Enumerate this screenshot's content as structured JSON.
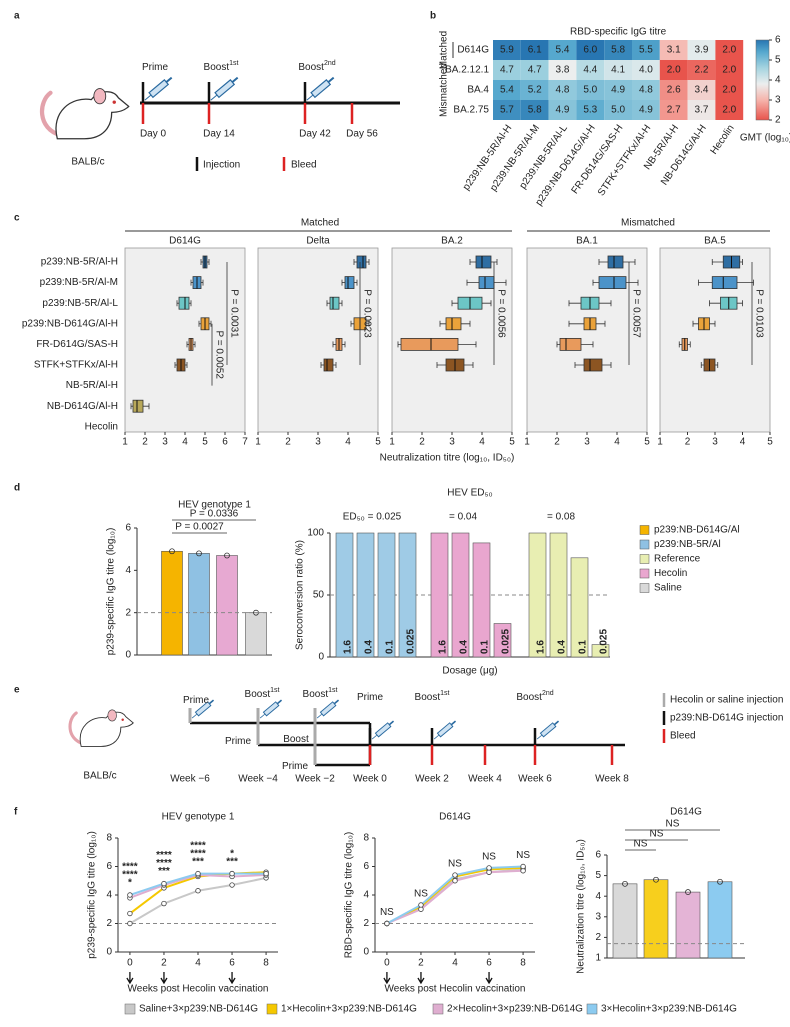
{
  "panel_labels": [
    "a",
    "b",
    "c",
    "d",
    "e",
    "f"
  ],
  "schedule_a": {
    "events": [
      {
        "label": "Prime"
      },
      {
        "label": "Boost",
        "sup": "1st"
      },
      {
        "label": "Boost",
        "sup": "2nd"
      }
    ],
    "days": [
      "Day 0",
      "Day 14",
      "Day 42",
      "Day 56"
    ],
    "strain": "BALB/c",
    "legend": [
      "Injection",
      "Bleed"
    ]
  },
  "panel_c": {
    "groups": [
      "Matched",
      "Mismatched"
    ],
    "categories": [
      "p239:NB-5R/Al-H",
      "p239:NB-5R/Al-M",
      "p239:NB-5R/Al-L",
      "p239:NB-D614G/Al-H",
      "FR-D614G/SAS-H",
      "STFK+STFKx/Al-H",
      "NB-5R/Al-H",
      "NB-D614G/Al-H",
      "Hecolin"
    ],
    "colors": [
      "#2f6ea3",
      "#4b93c9",
      "#6cc6c6",
      "#eaa23a",
      "#e89a5c",
      "#8c5522",
      "#888888",
      "#b8a85a",
      "#888888"
    ],
    "xlabel": "Neutralization titre (log₁₀, ID₅₀)"
  },
  "legend_d": [
    {
      "name": "p239:NB-D614G/Al",
      "color": "#f5b400"
    },
    {
      "name": "p239:NB-5R/Al",
      "color": "#8fc1e3"
    },
    {
      "name": "Reference",
      "color": "#e8eeb2"
    },
    {
      "name": "Hecolin",
      "color": "#e9a6cf"
    },
    {
      "name": "Saline",
      "color": "#d9d9d9"
    }
  ],
  "schedule_e": {
    "steps": [
      {
        "label": "Prime"
      },
      {
        "label": "Boost",
        "sup": "1st"
      },
      {
        "label": "Boost",
        "sup": "1st"
      },
      {
        "label": "Prime"
      },
      {
        "label": "Boost",
        "sup": "1st"
      },
      {
        "label": "Boost",
        "sup": "2nd"
      },
      {
        "label": "Prime"
      },
      {
        "label": "Boost"
      },
      {
        "label": "Prime"
      }
    ],
    "weeks": [
      "Week −6",
      "Week −4",
      "Week −2",
      "Week 0",
      "Week 2",
      "Week 4",
      "Week 6",
      "Week 8"
    ],
    "strain": "BALB/c",
    "legend": [
      "Hecolin or saline injection",
      "p239:NB-D614G injection",
      "Bleed"
    ]
  },
  "chart_data": [
    {
      "type": "heatmap",
      "title": "RBD-specific IgG titre",
      "row_groups": [
        "Matched",
        "Mismatched"
      ],
      "rows": [
        "D614G",
        "BA.2.12.1",
        "BA.4",
        "BA.2.75"
      ],
      "columns": [
        "p239:NB-5R/Al-H",
        "p239:NB-5R/Al-M",
        "p239:NB-5R/Al-L",
        "p239:NB-D614G/Al-H",
        "FR-D614G/SAS-H",
        "STFK+STFKx/Al-H",
        "NB-5R/Al-H",
        "NB-D614G/Al-H",
        "Hecolin"
      ],
      "values": [
        [
          5.9,
          6.1,
          5.4,
          6.0,
          5.8,
          5.5,
          3.1,
          3.9,
          2.0
        ],
        [
          4.7,
          4.7,
          3.8,
          4.4,
          4.1,
          4.0,
          2.0,
          2.2,
          2.0
        ],
        [
          5.4,
          5.2,
          4.8,
          5.0,
          4.9,
          4.8,
          2.6,
          3.4,
          2.0
        ],
        [
          5.7,
          5.8,
          4.9,
          5.3,
          5.0,
          4.9,
          2.7,
          3.7,
          2.0
        ]
      ],
      "value_labels": [
        [
          "5.9",
          "6.1",
          "5.4",
          "6.0",
          "5.8",
          "5.5",
          "3.1",
          "3.9",
          "2.0"
        ],
        [
          "4.7",
          "4.7",
          "3.8",
          "4.4",
          "4.1",
          "4.0",
          "2.0",
          "2.2",
          "2.0"
        ],
        [
          "5.4",
          "5.2",
          "4.8",
          "5.0",
          "4.9",
          "4.8",
          "2.6",
          "3.4",
          "2.0"
        ],
        [
          "5.7",
          "5.8",
          "4.9",
          "5.3",
          "5.0",
          "4.9",
          "2.7",
          "3.7",
          "2.0"
        ]
      ],
      "clim": [
        2,
        6
      ],
      "cticks": [
        2,
        3,
        4,
        5,
        6
      ],
      "colorbar_label": "GMT (log₁₀)"
    },
    {
      "type": "box",
      "title": "D614G",
      "xlim": [
        1,
        7
      ],
      "xticks": [
        1,
        2,
        3,
        4,
        5,
        6,
        7
      ],
      "p_values": [
        "P = 0.0031",
        "P = 0.0052"
      ],
      "boxes": [
        {
          "min": 4.8,
          "q1": 4.9,
          "median": 5.0,
          "q3": 5.1,
          "max": 5.2
        },
        {
          "min": 4.3,
          "q1": 4.4,
          "median": 4.6,
          "q3": 4.8,
          "max": 4.9
        },
        {
          "min": 3.6,
          "q1": 3.7,
          "median": 4.0,
          "q3": 4.2,
          "max": 4.3
        },
        {
          "min": 4.7,
          "q1": 4.8,
          "median": 5.0,
          "q3": 5.2,
          "max": 5.3
        },
        {
          "min": 4.1,
          "q1": 4.2,
          "median": 4.3,
          "q3": 4.4,
          "max": 4.5
        },
        {
          "min": 3.5,
          "q1": 3.6,
          "median": 3.8,
          "q3": 4.0,
          "max": 4.1
        },
        null,
        {
          "min": 1.3,
          "q1": 1.4,
          "median": 1.6,
          "q3": 1.9,
          "max": 2.2
        },
        null
      ]
    },
    {
      "type": "box",
      "title": "Delta",
      "xlim": [
        1,
        5
      ],
      "xticks": [
        1,
        2,
        3,
        4,
        5
      ],
      "p_values": [
        "P = 0.0023"
      ],
      "boxes": [
        {
          "min": 4.2,
          "q1": 4.3,
          "median": 4.5,
          "q3": 4.6,
          "max": 4.7
        },
        {
          "min": 3.8,
          "q1": 3.9,
          "median": 4.0,
          "q3": 4.2,
          "max": 4.3
        },
        {
          "min": 3.3,
          "q1": 3.4,
          "median": 3.5,
          "q3": 3.7,
          "max": 3.8
        },
        {
          "min": 4.1,
          "q1": 4.2,
          "median": 4.4,
          "q3": 4.6,
          "max": 4.7
        },
        {
          "min": 3.5,
          "q1": 3.6,
          "median": 3.7,
          "q3": 3.8,
          "max": 3.9
        },
        {
          "min": 3.1,
          "q1": 3.2,
          "median": 3.3,
          "q3": 3.5,
          "max": 3.6
        },
        null,
        null,
        null
      ]
    },
    {
      "type": "box",
      "title": "BA.2",
      "xlim": [
        1,
        5
      ],
      "xticks": [
        1,
        2,
        3,
        4,
        5
      ],
      "p_values": [
        "P = 0.0056"
      ],
      "boxes": [
        {
          "min": 3.6,
          "q1": 3.8,
          "median": 4.0,
          "q3": 4.3,
          "max": 4.5
        },
        {
          "min": 3.5,
          "q1": 3.9,
          "median": 4.1,
          "q3": 4.4,
          "max": 4.8
        },
        {
          "min": 3.0,
          "q1": 3.2,
          "median": 3.6,
          "q3": 4.0,
          "max": 4.3
        },
        {
          "min": 2.6,
          "q1": 2.8,
          "median": 3.0,
          "q3": 3.3,
          "max": 3.6
        },
        {
          "min": 1.2,
          "q1": 1.3,
          "median": 2.3,
          "q3": 3.2,
          "max": 3.8
        },
        {
          "min": 2.5,
          "q1": 2.8,
          "median": 3.1,
          "q3": 3.4,
          "max": 3.7
        },
        null,
        null,
        null
      ]
    },
    {
      "type": "box",
      "title": "BA.1",
      "xlim": [
        1,
        5
      ],
      "xticks": [
        1,
        2,
        3,
        4,
        5
      ],
      "p_values": [
        "P = 0.0057"
      ],
      "boxes": [
        {
          "min": 3.4,
          "q1": 3.7,
          "median": 3.9,
          "q3": 4.2,
          "max": 4.6
        },
        {
          "min": 3.2,
          "q1": 3.4,
          "median": 3.9,
          "q3": 4.3,
          "max": 4.7
        },
        {
          "min": 2.4,
          "q1": 2.8,
          "median": 3.1,
          "q3": 3.4,
          "max": 3.8
        },
        {
          "min": 2.4,
          "q1": 2.9,
          "median": 3.1,
          "q3": 3.3,
          "max": 3.6
        },
        {
          "min": 2.0,
          "q1": 2.1,
          "median": 2.3,
          "q3": 2.8,
          "max": 3.2
        },
        {
          "min": 2.6,
          "q1": 2.9,
          "median": 3.1,
          "q3": 3.5,
          "max": 3.8
        },
        null,
        null,
        null
      ]
    },
    {
      "type": "box",
      "title": "BA.5",
      "xlim": [
        1,
        5
      ],
      "xticks": [
        1,
        2,
        3,
        4,
        5
      ],
      "p_values": [
        "P = 0.0103"
      ],
      "boxes": [
        {
          "min": 2.9,
          "q1": 3.3,
          "median": 3.6,
          "q3": 3.9,
          "max": 4.0
        },
        {
          "min": 2.4,
          "q1": 2.9,
          "median": 3.3,
          "q3": 3.8,
          "max": 4.4
        },
        {
          "min": 2.8,
          "q1": 3.2,
          "median": 3.5,
          "q3": 3.8,
          "max": 4.0
        },
        {
          "min": 2.2,
          "q1": 2.4,
          "median": 2.6,
          "q3": 2.8,
          "max": 3.0
        },
        {
          "min": 1.7,
          "q1": 1.8,
          "median": 1.9,
          "q3": 2.0,
          "max": 2.1
        },
        {
          "min": 2.5,
          "q1": 2.6,
          "median": 2.8,
          "q3": 3.0,
          "max": 3.1
        },
        null,
        null,
        null
      ]
    },
    {
      "type": "bar",
      "title": "HEV genotype 1",
      "ylabel": "p239-specific IgG titre (log₁₀)",
      "categories": [
        null,
        null,
        null,
        null
      ],
      "values": [
        4.9,
        4.8,
        4.7,
        2
      ],
      "colors": [
        "#f5b400",
        "#8fc1e3",
        "#e7a9d2",
        "#d9d9d9"
      ],
      "ylim": [
        0,
        6
      ],
      "yticks": [
        0,
        2,
        4,
        6
      ],
      "reference_line": 2,
      "annotations": [
        "P = 0.0336",
        "P = 0.0027"
      ]
    },
    {
      "type": "grouped_bar",
      "title": "HEV ED₅₀",
      "ylabel": "Seroconversion ratio (%)",
      "xlabel": "Dosage (μg)",
      "ylim": [
        0,
        100
      ],
      "yticks": [
        0,
        50,
        100
      ],
      "reference_line": 50,
      "groups": [
        {
          "annotation": "ED₅₀ = 0.025",
          "color": "#9fcbe6",
          "categories": [
            "1.6",
            "0.4",
            "0.1",
            "0.025"
          ],
          "values": [
            100,
            100,
            100,
            100
          ]
        },
        {
          "annotation": "= 0.04",
          "color": "#e9a6cf",
          "categories": [
            "1.6",
            "0.4",
            "0.1",
            "0.025"
          ],
          "values": [
            100,
            100,
            92,
            27
          ]
        },
        {
          "annotation": "= 0.08",
          "color": "#e8eeb2",
          "categories": [
            "1.6",
            "0.4",
            "0.1",
            "0.025"
          ],
          "values": [
            100,
            100,
            80,
            10
          ]
        }
      ]
    },
    {
      "type": "line",
      "title": "HEV genotype 1",
      "ylabel": "p239-specific IgG titre (log₁₀)",
      "xlabel": "Weeks post Hecolin vaccination",
      "x": [
        0,
        2,
        4,
        6,
        8
      ],
      "xlim": [
        -0.7,
        8.7
      ],
      "xticks": [
        0,
        2,
        4,
        6,
        8
      ],
      "ylim": [
        0,
        8
      ],
      "yticks": [
        0,
        2,
        4,
        6,
        8
      ],
      "reference_line": 2,
      "injection_weeks": [
        0,
        2,
        6
      ],
      "series": [
        {
          "name": "Saline+3×p239:NB-D614G",
          "color": "#c8c8c8",
          "values": [
            2.0,
            3.4,
            4.3,
            4.7,
            5.2
          ]
        },
        {
          "name": "1×Hecolin+3×p239:NB-D614G",
          "color": "#f5c800",
          "values": [
            2.7,
            4.5,
            5.3,
            5.5,
            5.6
          ]
        },
        {
          "name": "2×Hecolin+3×p239:NB-D614G",
          "color": "#dfaed0",
          "values": [
            3.8,
            4.7,
            5.4,
            5.3,
            5.4
          ]
        },
        {
          "name": "3×Hecolin+3×p239:NB-D614G",
          "color": "#8ccbf0",
          "values": [
            4.0,
            4.8,
            5.5,
            5.5,
            5.5
          ]
        }
      ],
      "annotations": [
        {
          "x": 0,
          "labels": [
            "****",
            "****",
            "*"
          ]
        },
        {
          "x": 2,
          "labels": [
            "****",
            "****",
            "***"
          ]
        },
        {
          "x": 4,
          "labels": [
            "****",
            "****",
            "***"
          ]
        },
        {
          "x": 6,
          "labels": [
            "*",
            "***"
          ]
        }
      ]
    },
    {
      "type": "line",
      "title": "D614G",
      "ylabel": "RBD-specific IgG titre (log₁₀)",
      "xlabel": "Weeks post Hecolin vaccination",
      "x": [
        0,
        2,
        4,
        6,
        8
      ],
      "xlim": [
        -0.7,
        8.7
      ],
      "xticks": [
        0,
        2,
        4,
        6,
        8
      ],
      "ylim": [
        0,
        8
      ],
      "yticks": [
        0,
        2,
        4,
        6,
        8
      ],
      "reference_line": 2,
      "injection_weeks": [
        0,
        2,
        6
      ],
      "series": [
        {
          "color": "#c8c8c8",
          "values": [
            2.0,
            3.1,
            5.1,
            5.6,
            5.8
          ]
        },
        {
          "color": "#f5c800",
          "values": [
            2.0,
            3.2,
            5.3,
            5.8,
            5.9
          ]
        },
        {
          "color": "#dfaed0",
          "values": [
            2.0,
            3.0,
            5.0,
            5.6,
            5.7
          ]
        },
        {
          "color": "#8ccbf0",
          "values": [
            2.0,
            3.3,
            5.4,
            5.9,
            6.0
          ]
        }
      ],
      "point_labels": [
        "NS",
        "NS",
        "NS",
        "NS",
        "NS"
      ]
    },
    {
      "type": "bar",
      "title": "D614G",
      "ylabel": "Neutralization titre (log₁₀, ID₅₀)",
      "categories": [
        null,
        null,
        null,
        null
      ],
      "values": [
        4.6,
        4.8,
        4.2,
        4.7
      ],
      "colors": [
        "#d9d9d9",
        "#f7cf1d",
        "#e4b4d6",
        "#8ccbf0"
      ],
      "ylim": [
        1,
        6
      ],
      "yticks": [
        1,
        2,
        3,
        4,
        5,
        6
      ],
      "reference_line": 1.7,
      "annotations": [
        "NS",
        "NS",
        "NS"
      ]
    }
  ]
}
